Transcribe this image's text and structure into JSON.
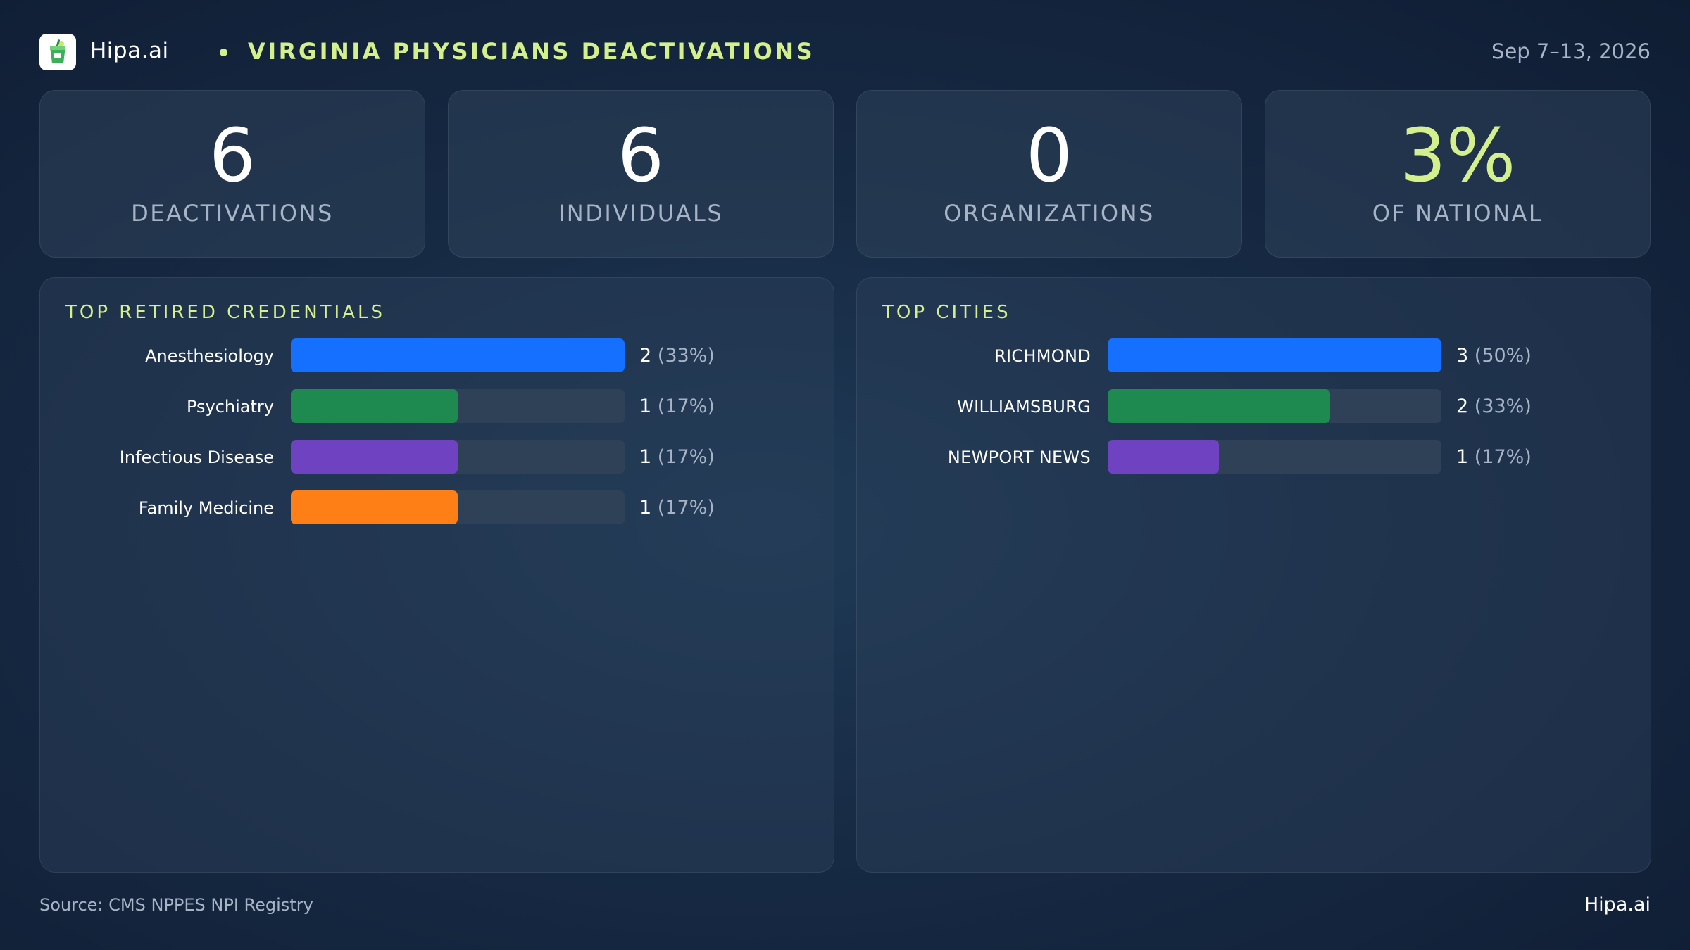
{
  "header": {
    "brand": "Hipa.ai",
    "headline": "VIRGINIA PHYSICIANS DEACTIVATIONS",
    "date_range": "Sep 7–13, 2026",
    "logo_icon": "drink-cup-icon"
  },
  "kpis": [
    {
      "value": "6",
      "label": "DEACTIVATIONS"
    },
    {
      "value": "6",
      "label": "INDIVIDUALS"
    },
    {
      "value": "0",
      "label": "ORGANIZATIONS"
    },
    {
      "value": "3%",
      "label": "OF NATIONAL"
    }
  ],
  "colors": {
    "accent": "#d4f08c",
    "blue": "#1570ff",
    "green": "#1e8a50",
    "purple": "#6f42c1",
    "orange": "#ff7f17",
    "track": "#2f4157"
  },
  "chart_data": [
    {
      "type": "bar",
      "orientation": "horizontal",
      "title": "TOP RETIRED CREDENTIALS",
      "categories": [
        "Anesthesiology",
        "Psychiatry",
        "Infectious Disease",
        "Family Medicine"
      ],
      "values": [
        2,
        1,
        1,
        1
      ],
      "percent_labels": [
        "(33%)",
        "(17%)",
        "(17%)",
        "(17%)"
      ],
      "bar_colors": [
        "#1570ff",
        "#1e8a50",
        "#6f42c1",
        "#ff7f17"
      ],
      "xlim": [
        0,
        2
      ]
    },
    {
      "type": "bar",
      "orientation": "horizontal",
      "title": "TOP CITIES",
      "categories": [
        "RICHMOND",
        "WILLIAMSBURG",
        "NEWPORT NEWS"
      ],
      "values": [
        3,
        2,
        1
      ],
      "percent_labels": [
        "(50%)",
        "(33%)",
        "(17%)"
      ],
      "bar_colors": [
        "#1570ff",
        "#1e8a50",
        "#6f42c1"
      ],
      "xlim": [
        0,
        3
      ]
    }
  ],
  "footer": {
    "source": "Source: CMS NPPES NPI Registry",
    "brand": "Hipa.ai"
  }
}
